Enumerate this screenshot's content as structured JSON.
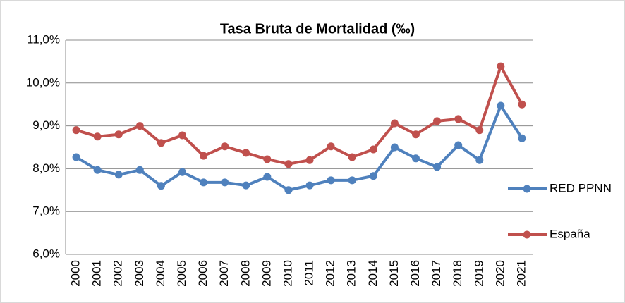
{
  "chart_data": {
    "type": "line",
    "title": "Tasa Bruta de Mortalidad (‰)",
    "categories": [
      "2000",
      "2001",
      "2002",
      "2003",
      "2004",
      "2005",
      "2006",
      "2007",
      "2008",
      "2009",
      "2010",
      "2011",
      "2012",
      "2013",
      "2014",
      "2015",
      "2016",
      "2017",
      "2018",
      "2019",
      "2020",
      "2021"
    ],
    "series": [
      {
        "name": "RED PPNN",
        "color": "#4f81bd",
        "values": [
          8.27,
          7.97,
          7.86,
          7.97,
          7.6,
          7.92,
          7.68,
          7.68,
          7.61,
          7.81,
          7.5,
          7.61,
          7.73,
          7.73,
          7.83,
          8.5,
          8.24,
          8.04,
          8.55,
          8.2,
          9.47,
          8.71
        ]
      },
      {
        "name": "España",
        "color": "#c0504d",
        "values": [
          8.9,
          8.75,
          8.8,
          9.0,
          8.6,
          8.78,
          8.3,
          8.52,
          8.37,
          8.22,
          8.11,
          8.2,
          8.52,
          8.27,
          8.45,
          9.06,
          8.8,
          9.11,
          9.16,
          8.9,
          10.39,
          9.5
        ]
      }
    ],
    "ylim": [
      6,
      11
    ],
    "yticks": [
      {
        "value": 6,
        "label": "6,0%"
      },
      {
        "value": 7,
        "label": "7,0%"
      },
      {
        "value": 8,
        "label": "8,0%"
      },
      {
        "value": 9,
        "label": "9,0%"
      },
      {
        "value": 10,
        "label": "10,0%"
      },
      {
        "value": 11,
        "label": "11,0%"
      }
    ],
    "grid": true,
    "legend": "right"
  }
}
